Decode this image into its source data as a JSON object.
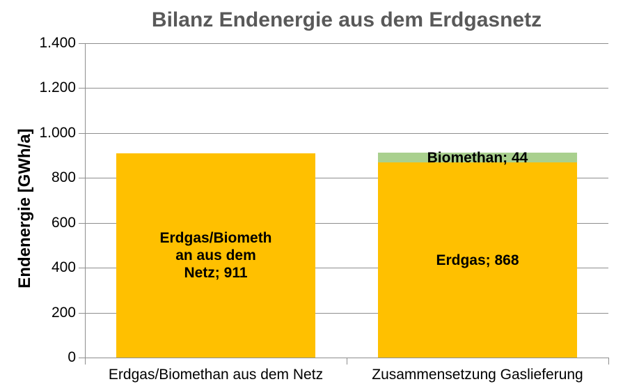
{
  "chart_data": {
    "type": "bar",
    "stacked": true,
    "title": "Bilanz Endenergie aus dem Erdgasnetz",
    "xlabel": "",
    "ylabel": "Endenergie [GWh/a]",
    "ylim": [
      0,
      1400
    ],
    "yticks": [
      0,
      200,
      400,
      600,
      800,
      1000,
      1200,
      1400
    ],
    "ytick_labels": [
      "0",
      "200",
      "400",
      "600",
      "800",
      "1.000",
      "1.200",
      "1.400"
    ],
    "grid": "horizontal gridlines on",
    "legend": "none",
    "categories": [
      "Erdgas/Biomethan aus dem Netz",
      "Zusammensetzung Gaslieferung"
    ],
    "bars": [
      {
        "category": "Erdgas/Biomethan aus dem Netz",
        "total": 911,
        "segments": [
          {
            "name": "Erdgas/Biomethan aus dem Netz",
            "value": 911,
            "color": "#FFC000",
            "label": "Erdgas/Biomethan aus dem Netz; 911",
            "label_lines": [
              "Erdgas/Biometh",
              "an aus dem",
              "Netz; 911"
            ]
          }
        ]
      },
      {
        "category": "Zusammensetzung Gaslieferung",
        "total": 912,
        "segments": [
          {
            "name": "Erdgas",
            "value": 868,
            "color": "#FFC000",
            "label": "Erdgas; 868",
            "label_lines": [
              "Erdgas; 868"
            ]
          },
          {
            "name": "Biomethan",
            "value": 44,
            "color": "#A9D08E",
            "label": "Biomethan; 44",
            "label_lines": [
              "Biomethan; 44"
            ]
          }
        ]
      }
    ],
    "colors": {
      "erdgas_segment": "#FFC000",
      "biomethan_segment": "#A9D08E",
      "gridline": "#8E8E8E",
      "axis": "#8E8E8E",
      "title_text": "#595959",
      "label_text": "#000000",
      "background": "#FFFFFF"
    }
  }
}
